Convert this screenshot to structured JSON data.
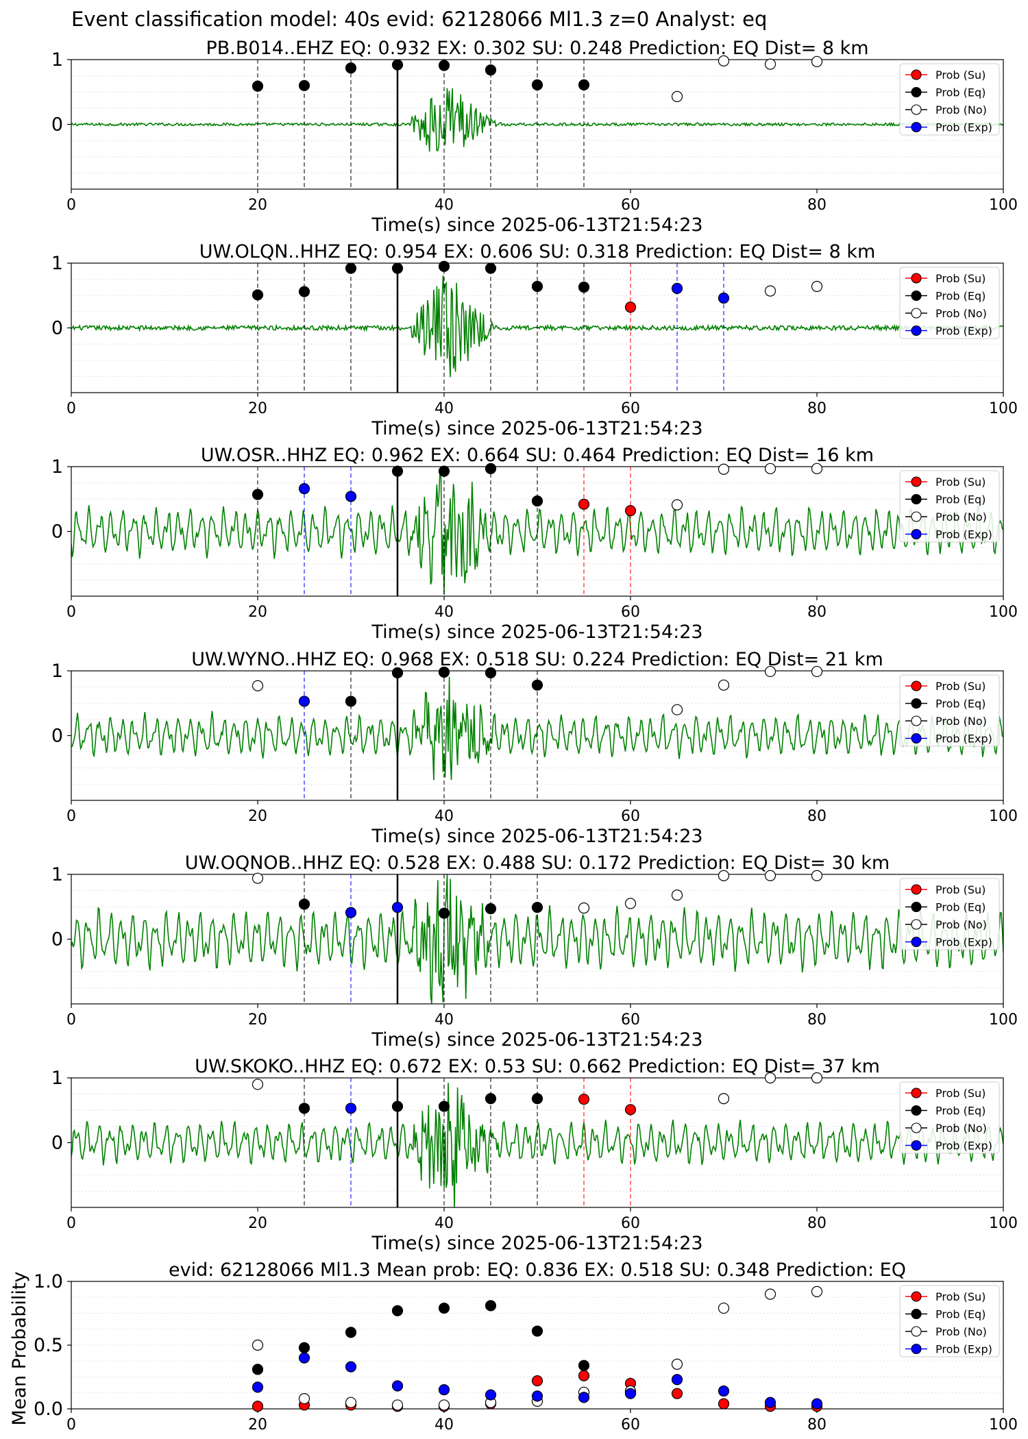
{
  "figure": {
    "suptitle": "Event classification model: 40s evid: 62128066 Ml1.3 z=0 Analyst: eq",
    "colors": {
      "waveform": "#008000",
      "eq": "#000000",
      "ex": "#0000ff",
      "su": "#ff0000",
      "no_fill": "#ffffff",
      "no_edge": "#000000"
    }
  },
  "legend": {
    "entries": [
      "Prob (Su)",
      "Prob (Eq)",
      "Prob (No)",
      "Prob (Exp)"
    ]
  },
  "chart_data": [
    {
      "type": "scatter",
      "title": "PB.B014..EHZ   EQ: 0.932  EX: 0.302  SU: 0.248   Prediction: EQ    Dist= 8 km",
      "xlabel": "Time(s) since 2025-06-13T21:54:23",
      "ylabel": "",
      "xlim": [
        0,
        100
      ],
      "ylim": [
        -1,
        1
      ],
      "xticks": [
        "0",
        "20",
        "40",
        "60",
        "80",
        "100"
      ],
      "yticks": [
        "1",
        "0"
      ],
      "grid": "horizontal",
      "legend_position": "top-right",
      "waveform": {
        "amp": 0.03,
        "style": "quiet",
        "peak": 0.62
      },
      "arrival_line_x": 35,
      "vlines": [
        {
          "x": 20,
          "cls": "eq"
        },
        {
          "x": 25,
          "cls": "eq"
        },
        {
          "x": 30,
          "cls": "eq"
        },
        {
          "x": 40,
          "cls": "eq"
        },
        {
          "x": 45,
          "cls": "eq"
        },
        {
          "x": 50,
          "cls": "eq"
        },
        {
          "x": 55,
          "cls": "eq"
        }
      ],
      "points": [
        {
          "x": 20,
          "y": 0.59,
          "cls": "eq"
        },
        {
          "x": 25,
          "y": 0.6,
          "cls": "eq"
        },
        {
          "x": 30,
          "y": 0.87,
          "cls": "eq"
        },
        {
          "x": 35,
          "y": 0.92,
          "cls": "eq"
        },
        {
          "x": 40,
          "y": 0.91,
          "cls": "eq"
        },
        {
          "x": 45,
          "y": 0.84,
          "cls": "eq"
        },
        {
          "x": 50,
          "y": 0.61,
          "cls": "eq"
        },
        {
          "x": 55,
          "y": 0.61,
          "cls": "eq"
        },
        {
          "x": 65,
          "y": 0.43,
          "cls": "no"
        },
        {
          "x": 70,
          "y": 0.98,
          "cls": "no"
        },
        {
          "x": 75,
          "y": 0.93,
          "cls": "no"
        },
        {
          "x": 80,
          "y": 0.97,
          "cls": "no"
        }
      ]
    },
    {
      "type": "scatter",
      "title": "UW.OLQN..HHZ   EQ: 0.954  EX: 0.606  SU: 0.318   Prediction: EQ    Dist= 8 km",
      "xlabel": "Time(s) since 2025-06-13T21:54:23",
      "ylabel": "",
      "xlim": [
        0,
        100
      ],
      "ylim": [
        -1,
        1
      ],
      "xticks": [
        "0",
        "20",
        "40",
        "60",
        "80",
        "100"
      ],
      "yticks": [
        "1",
        "0"
      ],
      "grid": "horizontal",
      "legend_position": "top-right",
      "waveform": {
        "amp": 0.05,
        "style": "quiet",
        "peak": 0.82
      },
      "arrival_line_x": 35,
      "vlines": [
        {
          "x": 20,
          "cls": "eq"
        },
        {
          "x": 25,
          "cls": "eq"
        },
        {
          "x": 30,
          "cls": "eq"
        },
        {
          "x": 40,
          "cls": "eq"
        },
        {
          "x": 45,
          "cls": "eq"
        },
        {
          "x": 50,
          "cls": "eq"
        },
        {
          "x": 55,
          "cls": "eq"
        },
        {
          "x": 60,
          "cls": "su"
        },
        {
          "x": 65,
          "cls": "ex"
        },
        {
          "x": 70,
          "cls": "ex"
        }
      ],
      "points": [
        {
          "x": 20,
          "y": 0.51,
          "cls": "eq"
        },
        {
          "x": 25,
          "y": 0.56,
          "cls": "eq"
        },
        {
          "x": 30,
          "y": 0.92,
          "cls": "eq"
        },
        {
          "x": 35,
          "y": 0.92,
          "cls": "eq"
        },
        {
          "x": 40,
          "y": 0.95,
          "cls": "eq"
        },
        {
          "x": 45,
          "y": 0.92,
          "cls": "eq"
        },
        {
          "x": 50,
          "y": 0.64,
          "cls": "eq"
        },
        {
          "x": 55,
          "y": 0.63,
          "cls": "eq"
        },
        {
          "x": 60,
          "y": 0.32,
          "cls": "su"
        },
        {
          "x": 65,
          "y": 0.61,
          "cls": "ex"
        },
        {
          "x": 70,
          "y": 0.46,
          "cls": "ex"
        },
        {
          "x": 75,
          "y": 0.57,
          "cls": "no"
        },
        {
          "x": 80,
          "y": 0.64,
          "cls": "no"
        }
      ]
    },
    {
      "type": "scatter",
      "title": "UW.OSR..HHZ   EQ: 0.962  EX: 0.664  SU: 0.464   Prediction: EQ    Dist= 16 km",
      "xlabel": "Time(s) since 2025-06-13T21:54:23",
      "ylabel": "",
      "xlim": [
        0,
        100
      ],
      "ylim": [
        -1,
        1
      ],
      "xticks": [
        "0",
        "20",
        "40",
        "60",
        "80",
        "100"
      ],
      "yticks": [
        "1",
        "0"
      ],
      "grid": "horizontal",
      "legend_position": "top-right",
      "waveform": {
        "amp": 0.4,
        "style": "noisy",
        "peak": 0.95
      },
      "arrival_line_x": 35,
      "vlines": [
        {
          "x": 20,
          "cls": "eq"
        },
        {
          "x": 25,
          "cls": "ex"
        },
        {
          "x": 30,
          "cls": "ex"
        },
        {
          "x": 40,
          "cls": "eq"
        },
        {
          "x": 45,
          "cls": "eq"
        },
        {
          "x": 50,
          "cls": "eq"
        },
        {
          "x": 55,
          "cls": "su"
        },
        {
          "x": 60,
          "cls": "su"
        }
      ],
      "points": [
        {
          "x": 20,
          "y": 0.57,
          "cls": "eq"
        },
        {
          "x": 25,
          "y": 0.66,
          "cls": "ex"
        },
        {
          "x": 30,
          "y": 0.54,
          "cls": "ex"
        },
        {
          "x": 35,
          "y": 0.93,
          "cls": "eq"
        },
        {
          "x": 40,
          "y": 0.93,
          "cls": "eq"
        },
        {
          "x": 45,
          "y": 0.97,
          "cls": "eq"
        },
        {
          "x": 50,
          "y": 0.47,
          "cls": "eq"
        },
        {
          "x": 55,
          "y": 0.42,
          "cls": "su"
        },
        {
          "x": 60,
          "y": 0.32,
          "cls": "su"
        },
        {
          "x": 65,
          "y": 0.41,
          "cls": "no"
        },
        {
          "x": 70,
          "y": 0.96,
          "cls": "no"
        },
        {
          "x": 75,
          "y": 0.97,
          "cls": "no"
        },
        {
          "x": 80,
          "y": 0.97,
          "cls": "no"
        }
      ]
    },
    {
      "type": "scatter",
      "title": "UW.WYNO..HHZ   EQ: 0.968  EX: 0.518  SU: 0.224   Prediction: EQ    Dist= 21 km",
      "xlabel": "Time(s) since 2025-06-13T21:54:23",
      "ylabel": "",
      "xlim": [
        0,
        100
      ],
      "ylim": [
        -1,
        1
      ],
      "xticks": [
        "0",
        "20",
        "40",
        "60",
        "80",
        "100"
      ],
      "yticks": [
        "1",
        "0"
      ],
      "grid": "horizontal",
      "legend_position": "top-right",
      "waveform": {
        "amp": 0.35,
        "style": "noisy",
        "peak": 0.98
      },
      "arrival_line_x": 35,
      "vlines": [
        {
          "x": 25,
          "cls": "ex"
        },
        {
          "x": 30,
          "cls": "eq"
        },
        {
          "x": 40,
          "cls": "eq"
        },
        {
          "x": 45,
          "cls": "eq"
        },
        {
          "x": 50,
          "cls": "eq"
        }
      ],
      "points": [
        {
          "x": 20,
          "y": 0.77,
          "cls": "no"
        },
        {
          "x": 25,
          "y": 0.53,
          "cls": "ex"
        },
        {
          "x": 30,
          "y": 0.53,
          "cls": "eq"
        },
        {
          "x": 35,
          "y": 0.97,
          "cls": "eq"
        },
        {
          "x": 40,
          "y": 0.98,
          "cls": "eq"
        },
        {
          "x": 45,
          "y": 0.97,
          "cls": "eq"
        },
        {
          "x": 50,
          "y": 0.78,
          "cls": "eq"
        },
        {
          "x": 65,
          "y": 0.4,
          "cls": "no"
        },
        {
          "x": 70,
          "y": 0.78,
          "cls": "no"
        },
        {
          "x": 75,
          "y": 0.99,
          "cls": "no"
        },
        {
          "x": 80,
          "y": 0.99,
          "cls": "no"
        }
      ]
    },
    {
      "type": "scatter",
      "title": "UW.OQNOB..HHZ   EQ: 0.528  EX: 0.488  SU: 0.172   Prediction: EQ    Dist= 30 km",
      "xlabel": "Time(s) since 2025-06-13T21:54:23",
      "ylabel": "",
      "xlim": [
        0,
        100
      ],
      "ylim": [
        -1,
        1
      ],
      "xticks": [
        "0",
        "20",
        "40",
        "60",
        "80",
        "100"
      ],
      "yticks": [
        "1",
        "0"
      ],
      "grid": "horizontal",
      "legend_position": "top-right",
      "waveform": {
        "amp": 0.5,
        "style": "noisy",
        "peak": 0.95
      },
      "arrival_line_x": 35,
      "vlines": [
        {
          "x": 25,
          "cls": "eq"
        },
        {
          "x": 30,
          "cls": "ex"
        },
        {
          "x": 40,
          "cls": "eq"
        },
        {
          "x": 45,
          "cls": "eq"
        },
        {
          "x": 50,
          "cls": "eq"
        }
      ],
      "points": [
        {
          "x": 20,
          "y": 0.94,
          "cls": "no"
        },
        {
          "x": 25,
          "y": 0.54,
          "cls": "eq"
        },
        {
          "x": 30,
          "y": 0.41,
          "cls": "ex"
        },
        {
          "x": 35,
          "y": 0.49,
          "cls": "ex"
        },
        {
          "x": 40,
          "y": 0.4,
          "cls": "eq"
        },
        {
          "x": 45,
          "y": 0.47,
          "cls": "eq"
        },
        {
          "x": 50,
          "y": 0.49,
          "cls": "eq"
        },
        {
          "x": 55,
          "y": 0.48,
          "cls": "no"
        },
        {
          "x": 60,
          "y": 0.55,
          "cls": "no"
        },
        {
          "x": 65,
          "y": 0.68,
          "cls": "no"
        },
        {
          "x": 70,
          "y": 0.98,
          "cls": "no"
        },
        {
          "x": 75,
          "y": 0.98,
          "cls": "no"
        },
        {
          "x": 80,
          "y": 0.98,
          "cls": "no"
        }
      ]
    },
    {
      "type": "scatter",
      "title": "UW.SKOKO..HHZ   EQ: 0.672  EX: 0.53  SU: 0.662   Prediction: EQ    Dist= 37 km",
      "xlabel": "Time(s) since 2025-06-13T21:54:23",
      "ylabel": "",
      "xlim": [
        0,
        100
      ],
      "ylim": [
        -1,
        1
      ],
      "xticks": [
        "0",
        "20",
        "40",
        "60",
        "80",
        "100"
      ],
      "yticks": [
        "1",
        "0"
      ],
      "grid": "horizontal",
      "legend_position": "top-right",
      "waveform": {
        "amp": 0.35,
        "style": "noisy",
        "peak": 0.95
      },
      "arrival_line_x": 35,
      "vlines": [
        {
          "x": 25,
          "cls": "eq"
        },
        {
          "x": 30,
          "cls": "ex"
        },
        {
          "x": 40,
          "cls": "eq"
        },
        {
          "x": 45,
          "cls": "eq"
        },
        {
          "x": 50,
          "cls": "eq"
        },
        {
          "x": 55,
          "cls": "su"
        },
        {
          "x": 60,
          "cls": "su"
        }
      ],
      "points": [
        {
          "x": 20,
          "y": 0.9,
          "cls": "no"
        },
        {
          "x": 25,
          "y": 0.53,
          "cls": "eq"
        },
        {
          "x": 30,
          "y": 0.53,
          "cls": "ex"
        },
        {
          "x": 35,
          "y": 0.56,
          "cls": "eq"
        },
        {
          "x": 40,
          "y": 0.56,
          "cls": "eq"
        },
        {
          "x": 45,
          "y": 0.68,
          "cls": "eq"
        },
        {
          "x": 50,
          "y": 0.68,
          "cls": "eq"
        },
        {
          "x": 55,
          "y": 0.67,
          "cls": "su"
        },
        {
          "x": 60,
          "y": 0.51,
          "cls": "su"
        },
        {
          "x": 70,
          "y": 0.68,
          "cls": "no"
        },
        {
          "x": 75,
          "y": 1.0,
          "cls": "no"
        },
        {
          "x": 80,
          "y": 1.0,
          "cls": "no"
        }
      ]
    },
    {
      "type": "scatter",
      "title": "evid: 62128066  Ml1.3   Mean prob:   EQ: 0.836  EX: 0.518  SU: 0.348   Prediction: EQ",
      "xlabel": "",
      "ylabel": "Mean Probability",
      "xlim": [
        0,
        100
      ],
      "ylim": [
        0,
        1
      ],
      "xticks": [
        "0",
        "20",
        "40",
        "60",
        "80",
        "100"
      ],
      "yticks": [
        "1.0",
        "0.5",
        "0.0"
      ],
      "grid": "horizontal",
      "legend_position": "top-right",
      "points": [
        {
          "x": 20,
          "y": 0.02,
          "cls": "su"
        },
        {
          "x": 25,
          "y": 0.03,
          "cls": "su"
        },
        {
          "x": 30,
          "y": 0.03,
          "cls": "su"
        },
        {
          "x": 35,
          "y": 0.02,
          "cls": "su"
        },
        {
          "x": 40,
          "y": 0.02,
          "cls": "su"
        },
        {
          "x": 45,
          "y": 0.04,
          "cls": "su"
        },
        {
          "x": 50,
          "y": 0.22,
          "cls": "su"
        },
        {
          "x": 55,
          "y": 0.26,
          "cls": "su"
        },
        {
          "x": 60,
          "y": 0.2,
          "cls": "su"
        },
        {
          "x": 65,
          "y": 0.12,
          "cls": "su"
        },
        {
          "x": 70,
          "y": 0.04,
          "cls": "su"
        },
        {
          "x": 75,
          "y": 0.02,
          "cls": "su"
        },
        {
          "x": 80,
          "y": 0.02,
          "cls": "su"
        },
        {
          "x": 20,
          "y": 0.31,
          "cls": "eq"
        },
        {
          "x": 25,
          "y": 0.48,
          "cls": "eq"
        },
        {
          "x": 30,
          "y": 0.6,
          "cls": "eq"
        },
        {
          "x": 35,
          "y": 0.77,
          "cls": "eq"
        },
        {
          "x": 40,
          "y": 0.79,
          "cls": "eq"
        },
        {
          "x": 45,
          "y": 0.81,
          "cls": "eq"
        },
        {
          "x": 50,
          "y": 0.61,
          "cls": "eq"
        },
        {
          "x": 55,
          "y": 0.34,
          "cls": "eq"
        },
        {
          "x": 60,
          "y": 0.13,
          "cls": "eq"
        },
        {
          "x": 20,
          "y": 0.5,
          "cls": "no"
        },
        {
          "x": 25,
          "y": 0.08,
          "cls": "no"
        },
        {
          "x": 30,
          "y": 0.05,
          "cls": "no"
        },
        {
          "x": 35,
          "y": 0.03,
          "cls": "no"
        },
        {
          "x": 40,
          "y": 0.03,
          "cls": "no"
        },
        {
          "x": 45,
          "y": 0.05,
          "cls": "no"
        },
        {
          "x": 50,
          "y": 0.06,
          "cls": "no"
        },
        {
          "x": 55,
          "y": 0.13,
          "cls": "no"
        },
        {
          "x": 60,
          "y": 0.14,
          "cls": "no"
        },
        {
          "x": 65,
          "y": 0.35,
          "cls": "no"
        },
        {
          "x": 70,
          "y": 0.79,
          "cls": "no"
        },
        {
          "x": 75,
          "y": 0.9,
          "cls": "no"
        },
        {
          "x": 80,
          "y": 0.92,
          "cls": "no"
        },
        {
          "x": 20,
          "y": 0.17,
          "cls": "ex"
        },
        {
          "x": 25,
          "y": 0.4,
          "cls": "ex"
        },
        {
          "x": 30,
          "y": 0.33,
          "cls": "ex"
        },
        {
          "x": 35,
          "y": 0.18,
          "cls": "ex"
        },
        {
          "x": 40,
          "y": 0.15,
          "cls": "ex"
        },
        {
          "x": 45,
          "y": 0.11,
          "cls": "ex"
        },
        {
          "x": 50,
          "y": 0.1,
          "cls": "ex"
        },
        {
          "x": 55,
          "y": 0.09,
          "cls": "ex"
        },
        {
          "x": 60,
          "y": 0.12,
          "cls": "ex"
        },
        {
          "x": 65,
          "y": 0.23,
          "cls": "ex"
        },
        {
          "x": 70,
          "y": 0.14,
          "cls": "ex"
        },
        {
          "x": 75,
          "y": 0.05,
          "cls": "ex"
        },
        {
          "x": 80,
          "y": 0.04,
          "cls": "ex"
        }
      ]
    }
  ]
}
